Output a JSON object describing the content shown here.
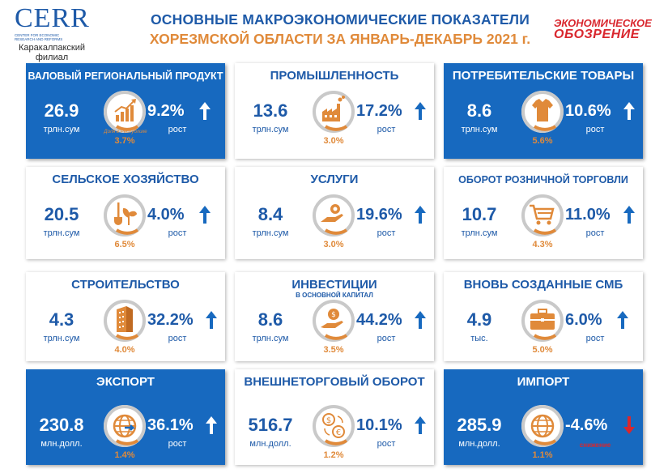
{
  "header": {
    "logo_word": "CERR",
    "logo_sub": "CENTER FOR ECONOMIC RESEARCH AND REFORMS",
    "logo_branch": "Каракалпакский филиал",
    "title_line1": "ОСНОВНЫЕ МАКРОЭКОНОМИЧЕСКИЕ ПОКАЗАТЕЛИ",
    "title_line2": "ХОРЕЗМСКОЙ ОБЛАСТИ ЗА ЯНВАРЬ-ДЕКАБРЬ 2021 г.",
    "brand_line1": "ЭКОНОМИЧЕСКОЕ",
    "brand_line2": "ОБОЗРЕНИЕ"
  },
  "colors": {
    "blue": "#1769bf",
    "orange": "#e08a3a",
    "red": "#d9272e",
    "ring": "#c9c9c9"
  },
  "cards": [
    {
      "title": "ВАЛОВЫЙ РЕГИОНАЛЬНЫЙ ПРОДУКТ",
      "value": "26.9",
      "unit": "трлн.сум",
      "rate": "9.2%",
      "rate_label": "рост",
      "share": "3.7%",
      "share_caption": "Доля в Республике",
      "icon": "growth-chart-icon",
      "style": "blue",
      "trend": "up"
    },
    {
      "title": "ПРОМЫШЛЕННОСТЬ",
      "value": "13.6",
      "unit": "трлн.сум",
      "rate": "17.2%",
      "rate_label": "рост",
      "share": "3.0%",
      "icon": "factory-icon",
      "style": "white",
      "trend": "up"
    },
    {
      "title": "ПОТРЕБИТЕЛЬСКИЕ ТОВАРЫ",
      "value": "8.6",
      "unit": "трлн.сум",
      "rate": "10.6%",
      "rate_label": "рост",
      "share": "5.6%",
      "icon": "t-shirt-icon",
      "style": "blue",
      "trend": "up"
    },
    {
      "title": "СЕЛЬСКОЕ ХОЗЯЙСТВО",
      "value": "20.5",
      "unit": "трлн.сум",
      "rate": "4.0%",
      "rate_label": "рост",
      "share": "6.5%",
      "icon": "shovel-plant-icon",
      "style": "white",
      "trend": "up"
    },
    {
      "title": "УСЛУГИ",
      "value": "8.4",
      "unit": "трлн.сум",
      "rate": "19.6%",
      "rate_label": "рост",
      "share": "3.0%",
      "icon": "hand-gear-icon",
      "style": "white",
      "trend": "up"
    },
    {
      "title": "ОБОРОТ РОЗНИЧНОЙ ТОРГОВЛИ",
      "value": "10.7",
      "unit": "трлн.сум",
      "rate": "11.0%",
      "rate_label": "рост",
      "share": "4.3%",
      "icon": "shopping-cart-icon",
      "style": "white",
      "trend": "up"
    },
    {
      "title": "СТРОИТЕЛЬСТВО",
      "value": "4.3",
      "unit": "трлн.сум",
      "rate": "32.2%",
      "rate_label": "рост",
      "share": "4.0%",
      "icon": "building-icon",
      "style": "white",
      "trend": "up"
    },
    {
      "title": "ИНВЕСТИЦИИ",
      "subtitle": "В ОСНОВНОЙ КАПИТАЛ",
      "value": "8.6",
      "unit": "трлн.сум",
      "rate": "44.2%",
      "rate_label": "рост",
      "share": "3.5%",
      "icon": "money-hand-icon",
      "style": "white",
      "trend": "up"
    },
    {
      "title": "ВНОВЬ СОЗДАННЫЕ СМБ",
      "value": "4.9",
      "unit": "тыс.",
      "rate": "6.0%",
      "rate_label": "рост",
      "share": "5.0%",
      "icon": "briefcase-icon",
      "style": "white",
      "trend": "up"
    },
    {
      "title": "ЭКСПОРТ",
      "value": "230.8",
      "unit": "млн.долл.",
      "rate": "36.1%",
      "rate_label": "рост",
      "share": "1.4%",
      "icon": "globe-arrow-icon",
      "style": "blue",
      "trend": "up"
    },
    {
      "title": "ВНЕШНЕТОРГОВЫЙ ОБОРОТ",
      "value": "516.7",
      "unit": "млн.долл.",
      "rate": "10.1%",
      "rate_label": "рост",
      "share": "1.2%",
      "icon": "currency-exchange-icon",
      "style": "white",
      "trend": "up"
    },
    {
      "title": "ИМПОРТ",
      "value": "285.9",
      "unit": "млн.долл.",
      "rate": "-4.6%",
      "rate_label": "снижение",
      "share": "1.1%",
      "icon": "globe-icon",
      "style": "blue",
      "trend": "down"
    }
  ]
}
